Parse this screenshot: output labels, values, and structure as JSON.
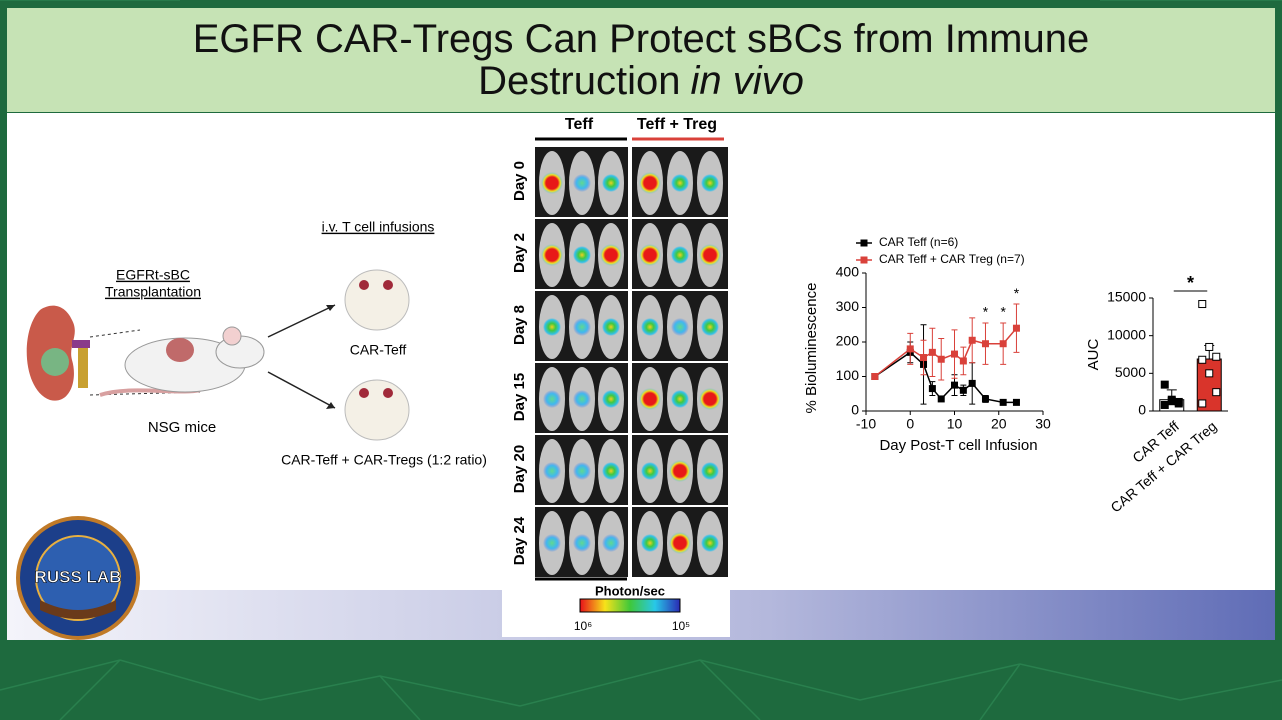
{
  "title": {
    "text": "EGFR CAR-Tregs Can Protect sBCs from Immune Destruction",
    "italic": "in vivo"
  },
  "schematic": {
    "transplant_label": [
      "EGFRt-sBC",
      "Transplantation"
    ],
    "mouse_label": "NSG mice",
    "infusion_label": "i.v. T cell infusions",
    "group_a": "CAR-Teff",
    "group_b": "CAR-Teff + CAR-Tregs (1:2 ratio)"
  },
  "imaging": {
    "groups": [
      "Teff",
      "Teff + Treg"
    ],
    "days": [
      "Day 0",
      "Day 2",
      "Day 8",
      "Day 15",
      "Day 20",
      "Day 24"
    ],
    "colorbar_title": "Photon/sec",
    "colorbar_labels": [
      "10⁶",
      "10⁵"
    ]
  },
  "logo": {
    "text": "RUSS LAB"
  },
  "chart_data": [
    {
      "type": "line",
      "x_label": "Day Post-T cell Infusion",
      "y_label": "% Bioluminescence",
      "x": [
        -8,
        0,
        3,
        5,
        7,
        10,
        12,
        14,
        17,
        21,
        24
      ],
      "series": [
        {
          "name": "CAR Teff (n=6)",
          "color": "#000000",
          "values": [
            100,
            170,
            135,
            65,
            35,
            75,
            60,
            80,
            35,
            25,
            25
          ],
          "errors": [
            0,
            30,
            115,
            20,
            5,
            30,
            15,
            60,
            10,
            5,
            5
          ]
        },
        {
          "name": "CAR Teff + CAR Treg (n=7)",
          "color": "#d9413a",
          "values": [
            100,
            180,
            155,
            170,
            150,
            165,
            145,
            205,
            195,
            195,
            240
          ],
          "errors": [
            0,
            45,
            50,
            70,
            60,
            70,
            40,
            65,
            60,
            60,
            70
          ]
        }
      ],
      "annotations": [
        {
          "x": 17,
          "text": "*"
        },
        {
          "x": 21,
          "text": "*"
        },
        {
          "x": 24,
          "text": "*"
        }
      ],
      "xlim": [
        -10,
        30
      ],
      "xticks": [
        -10,
        0,
        10,
        20,
        30
      ],
      "ylim": [
        0,
        400
      ],
      "yticks": [
        0,
        100,
        200,
        300,
        400
      ]
    },
    {
      "type": "bar",
      "y_label": "AUC",
      "categories": [
        "CAR Teff",
        "CAR Teff + CAR Treg"
      ],
      "values": [
        1500,
        6900
      ],
      "errors": [
        1300,
        1800
      ],
      "colors": [
        "#ffffff",
        "#d9342b"
      ],
      "point_colors": [
        "#000000",
        "#ffffff"
      ],
      "points": [
        [
          3500,
          1500,
          1000,
          800,
          1300,
          1200
        ],
        [
          14200,
          8500,
          7200,
          6800,
          5000,
          2500,
          1000
        ]
      ],
      "significance": "*",
      "ylim": [
        0,
        15000
      ],
      "yticks": [
        0,
        5000,
        10000,
        15000
      ]
    }
  ]
}
